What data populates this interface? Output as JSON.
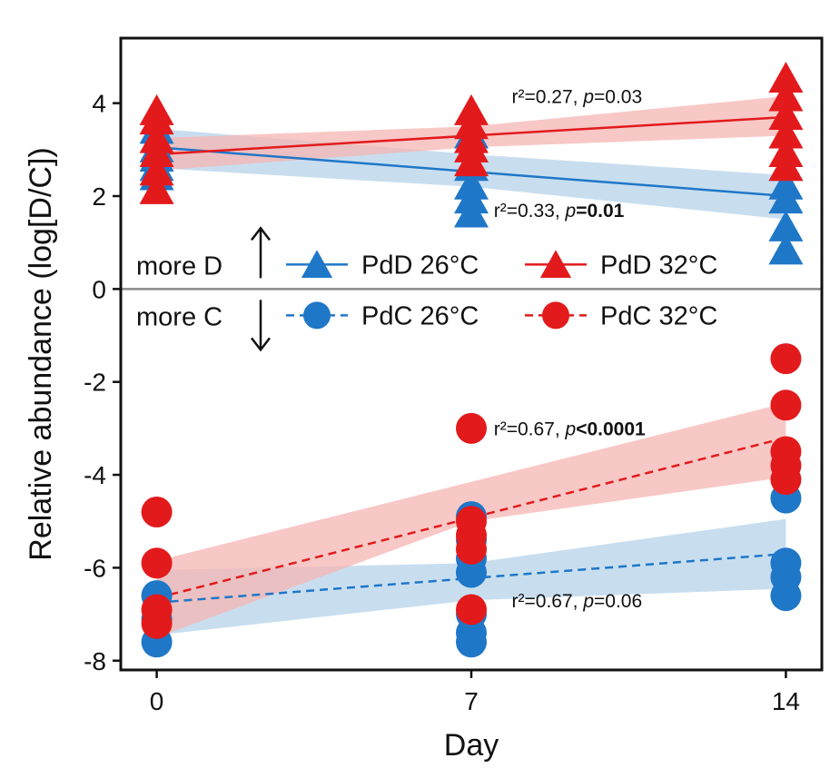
{
  "chart_data": {
    "type": "scatter",
    "xlabel": "Day",
    "ylabel": "Relative abundance (log[D/C])",
    "xlim": [
      -0.8,
      14.8
    ],
    "ylim": [
      -8.2,
      5.4
    ],
    "x_ticks": [
      0,
      7,
      14
    ],
    "y_ticks": [
      4,
      2,
      0,
      -2,
      -4,
      -6,
      -8
    ],
    "zero_line": true,
    "colors": {
      "d26": "#1f77c8",
      "d32": "#e31a1c",
      "ci26": "#b6d3ea",
      "ci32": "#f5b5b3"
    },
    "series": [
      {
        "name": "PdD 26°C",
        "marker": "triangle",
        "line": "solid",
        "color": "#1f77c8",
        "points": [
          [
            0,
            3.4
          ],
          [
            0,
            3.0
          ],
          [
            0,
            2.8
          ],
          [
            0,
            2.6
          ],
          [
            0,
            2.4
          ],
          [
            7,
            3.3
          ],
          [
            7,
            2.6
          ],
          [
            7,
            2.2
          ],
          [
            7,
            1.9
          ],
          [
            7,
            1.6
          ],
          [
            14,
            2.6
          ],
          [
            14,
            2.2
          ],
          [
            14,
            1.9
          ],
          [
            14,
            1.3
          ],
          [
            14,
            0.8
          ]
        ],
        "fit": [
          [
            0,
            3.05
          ],
          [
            14,
            2.0
          ]
        ],
        "ci": {
          "x": [
            0,
            7,
            14
          ],
          "lower": [
            2.6,
            2.2,
            1.5
          ],
          "upper": [
            3.45,
            2.9,
            2.45
          ]
        }
      },
      {
        "name": "PdD 32°C",
        "marker": "triangle",
        "line": "solid",
        "color": "#e31a1c",
        "points": [
          [
            0,
            3.8
          ],
          [
            0,
            3.6
          ],
          [
            0,
            3.2
          ],
          [
            0,
            2.9
          ],
          [
            0,
            2.5
          ],
          [
            0,
            2.1
          ],
          [
            7,
            3.8
          ],
          [
            7,
            3.5
          ],
          [
            7,
            3.2
          ],
          [
            7,
            3.0
          ],
          [
            7,
            2.7
          ],
          [
            14,
            4.5
          ],
          [
            14,
            4.1
          ],
          [
            14,
            3.7
          ],
          [
            14,
            3.3
          ],
          [
            14,
            2.9
          ],
          [
            14,
            2.6
          ]
        ],
        "fit": [
          [
            0,
            2.9
          ],
          [
            14,
            3.7
          ]
        ],
        "ci": {
          "x": [
            0,
            7,
            14
          ],
          "lower": [
            2.55,
            3.05,
            3.3
          ],
          "upper": [
            3.25,
            3.5,
            4.15
          ]
        }
      },
      {
        "name": "PdC 26°C",
        "marker": "circle",
        "line": "dashed",
        "color": "#1f77c8",
        "points": [
          [
            0,
            -6.6
          ],
          [
            0,
            -7.1
          ],
          [
            0,
            -7.6
          ],
          [
            7,
            -4.9
          ],
          [
            7,
            -5.4
          ],
          [
            7,
            -5.8
          ],
          [
            7,
            -6.1
          ],
          [
            7,
            -7.0
          ],
          [
            7,
            -7.4
          ],
          [
            7,
            -7.6
          ],
          [
            14,
            -4.5
          ],
          [
            14,
            -5.9
          ],
          [
            14,
            -6.2
          ],
          [
            14,
            -6.6
          ]
        ],
        "fit": [
          [
            0,
            -6.75
          ],
          [
            14,
            -5.7
          ]
        ],
        "ci": {
          "x": [
            0,
            7,
            14
          ],
          "lower": [
            -7.45,
            -6.7,
            -6.45
          ],
          "upper": [
            -6.05,
            -5.9,
            -4.95
          ]
        }
      },
      {
        "name": "PdC 32°C",
        "marker": "circle",
        "line": "dashed",
        "color": "#e31a1c",
        "points": [
          [
            0,
            -4.8
          ],
          [
            0,
            -5.9
          ],
          [
            0,
            -6.9
          ],
          [
            0,
            -7.2
          ],
          [
            7,
            -3.0
          ],
          [
            7,
            -5.0
          ],
          [
            7,
            -5.3
          ],
          [
            7,
            -5.6
          ],
          [
            7,
            -6.9
          ],
          [
            14,
            -1.5
          ],
          [
            14,
            -2.5
          ],
          [
            14,
            -3.5
          ],
          [
            14,
            -3.8
          ],
          [
            14,
            -4.1
          ]
        ],
        "fit": [
          [
            0,
            -6.65
          ],
          [
            14,
            -3.2
          ]
        ],
        "ci": {
          "x": [
            0,
            7,
            14
          ],
          "lower": [
            -7.5,
            -5.0,
            -4.05
          ],
          "upper": [
            -5.85,
            -4.15,
            -2.45
          ]
        }
      }
    ],
    "annotations": [
      {
        "id": "ann-d32",
        "x": 7.9,
        "y": 4.0,
        "r2": "r²=0.27, ",
        "p_label": "p",
        "p_val": "=0.03",
        "bold": false
      },
      {
        "id": "ann-d26",
        "x": 7.5,
        "y": 1.55,
        "r2": "r²=0.33, ",
        "p_label": "p",
        "p_val": "=0.01",
        "bold": true
      },
      {
        "id": "ann-c32",
        "x": 7.5,
        "y": -3.15,
        "r2": "r²=0.67, ",
        "p_label": "p",
        "p_val": "<0.0001",
        "bold": true
      },
      {
        "id": "ann-c26",
        "x": 7.9,
        "y": -6.85,
        "r2": "r²=0.67, ",
        "p_label": "p",
        "p_val": "=0.06",
        "bold": false
      }
    ],
    "direction": {
      "up_label": "more D",
      "down_label": "more C"
    },
    "legend": {
      "rows": [
        [
          {
            "label": "PdD 26°C",
            "marker": "triangle",
            "color": "#1f77c8",
            "dash": false
          },
          {
            "label": "PdD 32°C",
            "marker": "triangle",
            "color": "#e31a1c",
            "dash": false
          }
        ],
        [
          {
            "label": "PdC 26°C",
            "marker": "circle",
            "color": "#1f77c8",
            "dash": true
          },
          {
            "label": "PdC 32°C",
            "marker": "circle",
            "color": "#e31a1c",
            "dash": true
          }
        ]
      ]
    }
  }
}
